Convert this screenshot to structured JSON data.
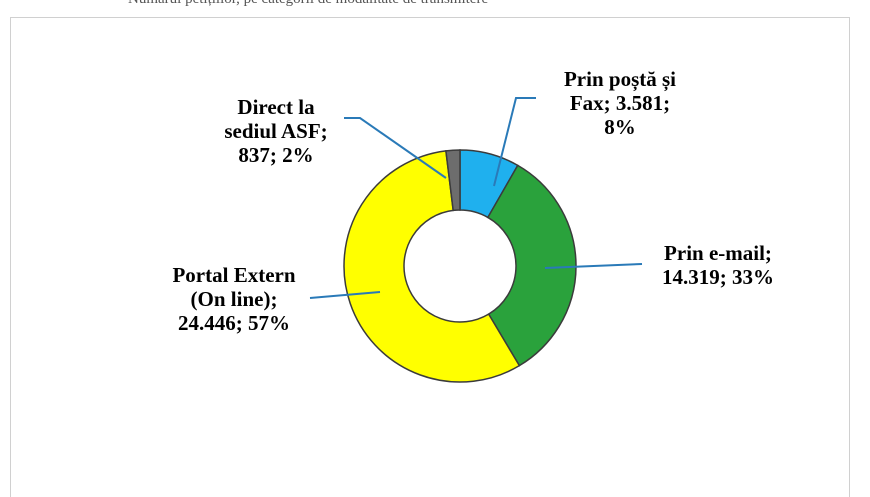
{
  "header_fragment": "Numărul petițiilor, pe categorii de modalitate de transmitere",
  "chart_data": {
    "type": "donut",
    "title": "",
    "slices": [
      {
        "name": "Prin poștă și Fax",
        "value": 3581,
        "value_label": "3.581",
        "percent": "8%",
        "color": "#1fb0ee",
        "label_lines": [
          "Prin poștă și",
          "Fax; 3.581;",
          "8%"
        ]
      },
      {
        "name": "Prin e-mail",
        "value": 14319,
        "value_label": "14.319",
        "percent": "33%",
        "color": "#2aa23c",
        "label_lines": [
          "Prin e-mail;",
          "14.319; 33%"
        ]
      },
      {
        "name": "Portal Extern (On line)",
        "value": 24446,
        "value_label": "24.446",
        "percent": "57%",
        "color": "#ffff00",
        "label_lines": [
          "Portal Extern",
          "(On line);",
          "24.446; 57%"
        ]
      },
      {
        "name": "Direct la sediul ASF",
        "value": 837,
        "value_label": "837",
        "percent": "2%",
        "color": "#6d6d6d",
        "label_lines": [
          "Direct la",
          "sediul ASF;",
          "837; 2%"
        ]
      }
    ],
    "legend": "none"
  }
}
